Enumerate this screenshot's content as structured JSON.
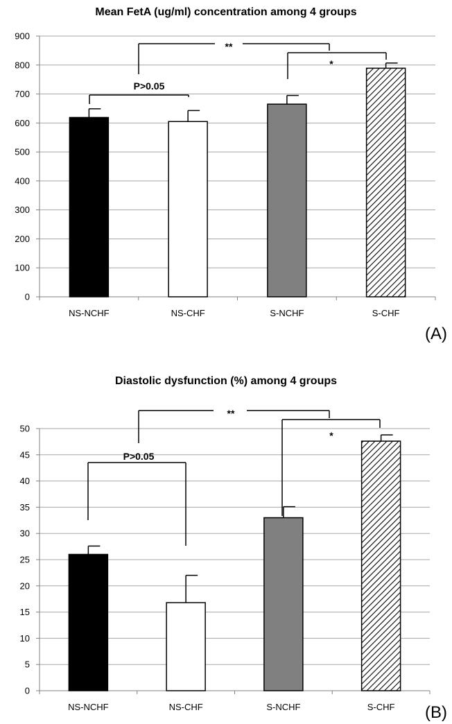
{
  "chart_data": [
    {
      "type": "bar",
      "panel_label": "(A)",
      "title": "Mean FetA (ug/ml) concentration among 4 groups",
      "categories": [
        "NS-NCHF",
        "NS-CHF",
        "S-NCHF",
        "S-CHF"
      ],
      "values": [
        619,
        605,
        665,
        789
      ],
      "errors": [
        30,
        38,
        30,
        18
      ],
      "bar_fills": [
        "solid-black",
        "white",
        "gray",
        "hatched"
      ],
      "bar_colors": [
        "#000000",
        "#ffffff",
        "#808080",
        "#ffffff"
      ],
      "ylim": [
        0,
        900
      ],
      "yticks": [
        0,
        100,
        200,
        300,
        400,
        500,
        600,
        700,
        800,
        900
      ],
      "grid": true,
      "annotations": [
        {
          "text": "P>0.05",
          "between": [
            "NS-NCHF",
            "NS-CHF"
          ]
        },
        {
          "text": "**",
          "between": [
            "NS-NCHF/NS-CHF",
            "S-NCHF/S-CHF"
          ]
        },
        {
          "text": "*",
          "between": [
            "S-NCHF",
            "S-CHF"
          ]
        }
      ]
    },
    {
      "type": "bar",
      "panel_label": "(B)",
      "title": "Diastolic dysfunction (%) among 4 groups",
      "categories": [
        "NS-NCHF",
        "NS-CHF",
        "S-NCHF",
        "S-CHF"
      ],
      "values": [
        26,
        16.8,
        33,
        47.6
      ],
      "errors": [
        1.6,
        5.2,
        2.1,
        1.2
      ],
      "bar_fills": [
        "solid-black",
        "white",
        "gray",
        "hatched"
      ],
      "bar_colors": [
        "#000000",
        "#ffffff",
        "#808080",
        "#ffffff"
      ],
      "ylim": [
        0,
        50
      ],
      "yticks": [
        0,
        5,
        10,
        15,
        20,
        25,
        30,
        35,
        40,
        45,
        50
      ],
      "grid": true,
      "annotations": [
        {
          "text": "P>0.05",
          "between": [
            "NS-NCHF",
            "NS-CHF"
          ]
        },
        {
          "text": "**",
          "between": [
            "NS-NCHF/NS-CHF",
            "S-NCHF/S-CHF"
          ]
        },
        {
          "text": "*",
          "between": [
            "S-NCHF",
            "S-CHF"
          ]
        }
      ]
    }
  ]
}
